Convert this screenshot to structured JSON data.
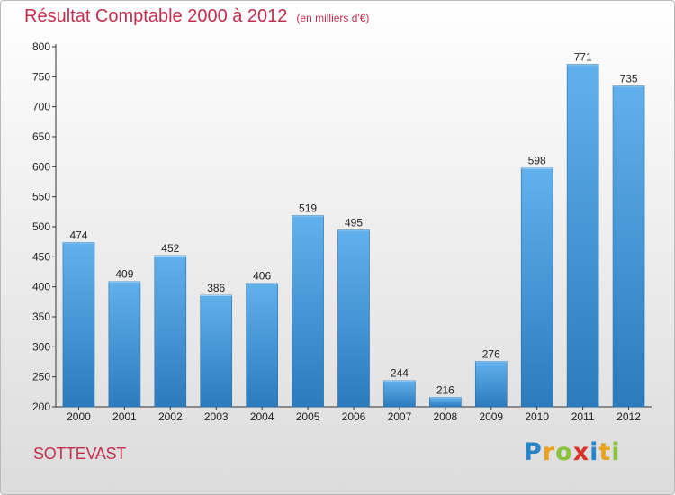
{
  "title": "Résultat Comptable 2000 à 2012",
  "subtitle": "(en milliers d'€)",
  "commune": "SOTTEVAST",
  "logo": {
    "letters": [
      "P",
      "r",
      "o",
      "x",
      "i",
      "t",
      "i"
    ],
    "colors": [
      "#2a84c8",
      "#e8a21b",
      "#8ac23c",
      "#d8332a",
      "#2a84c8",
      "#e8a21b",
      "#8ac23c"
    ]
  },
  "colors": {
    "bar_top": "#62b0ec",
    "bar_bottom": "#2b7bbd",
    "title": "#c0304e"
  },
  "chart_data": {
    "type": "bar",
    "categories": [
      "2000",
      "2001",
      "2002",
      "2003",
      "2004",
      "2005",
      "2006",
      "2007",
      "2008",
      "2009",
      "2010",
      "2011",
      "2012"
    ],
    "values": [
      474,
      409,
      452,
      386,
      406,
      519,
      495,
      244,
      216,
      276,
      598,
      771,
      735
    ],
    "ylim": [
      200,
      800
    ],
    "yticks": [
      200,
      250,
      300,
      350,
      400,
      450,
      500,
      550,
      600,
      650,
      700,
      750,
      800
    ],
    "grid": false,
    "legend": "none"
  }
}
